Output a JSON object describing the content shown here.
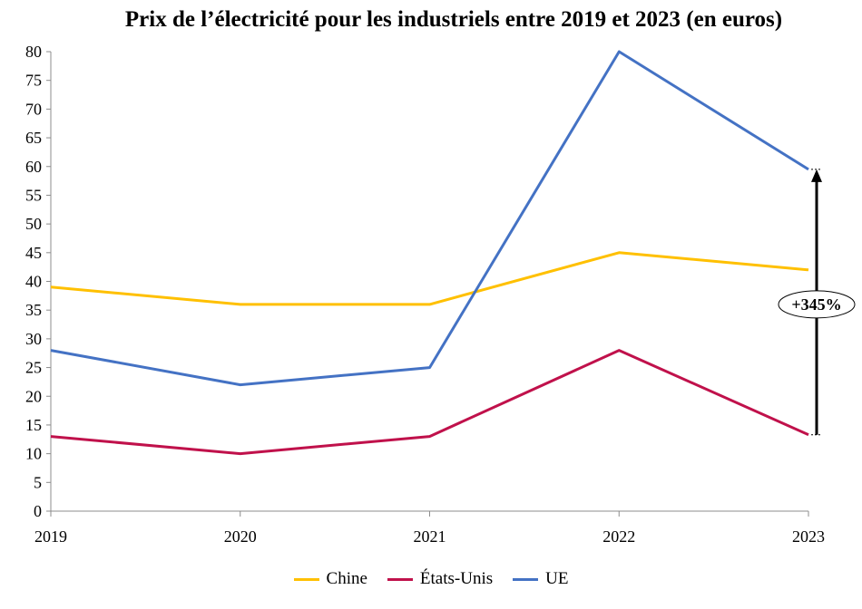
{
  "chart_data": {
    "type": "line",
    "title": "Prix de l’électricité pour les industriels entre 2019 et 2023 (en euros)",
    "xlabel": "",
    "ylabel": "",
    "x": [
      "2019",
      "2020",
      "2021",
      "2022",
      "2023"
    ],
    "ylim": [
      0,
      80
    ],
    "yticks": [
      "0",
      "5",
      "10",
      "15",
      "20",
      "25",
      "30",
      "35",
      "40",
      "45",
      "50",
      "55",
      "60",
      "65",
      "70",
      "75",
      "80"
    ],
    "grid": false,
    "legend_position": "bottom",
    "series": [
      {
        "name": "Chine",
        "color": "#FFC000",
        "values": [
          39,
          36,
          36,
          45,
          42
        ]
      },
      {
        "name": "États-Unis",
        "color": "#C0114B",
        "values": [
          13,
          10,
          13,
          28,
          13.3
        ]
      },
      {
        "name": "UE",
        "color": "#4472C4",
        "values": [
          28,
          22,
          25,
          80,
          59.5
        ]
      }
    ],
    "annotation": {
      "label": "+345%",
      "from": 13.3,
      "to": 59.5
    }
  }
}
